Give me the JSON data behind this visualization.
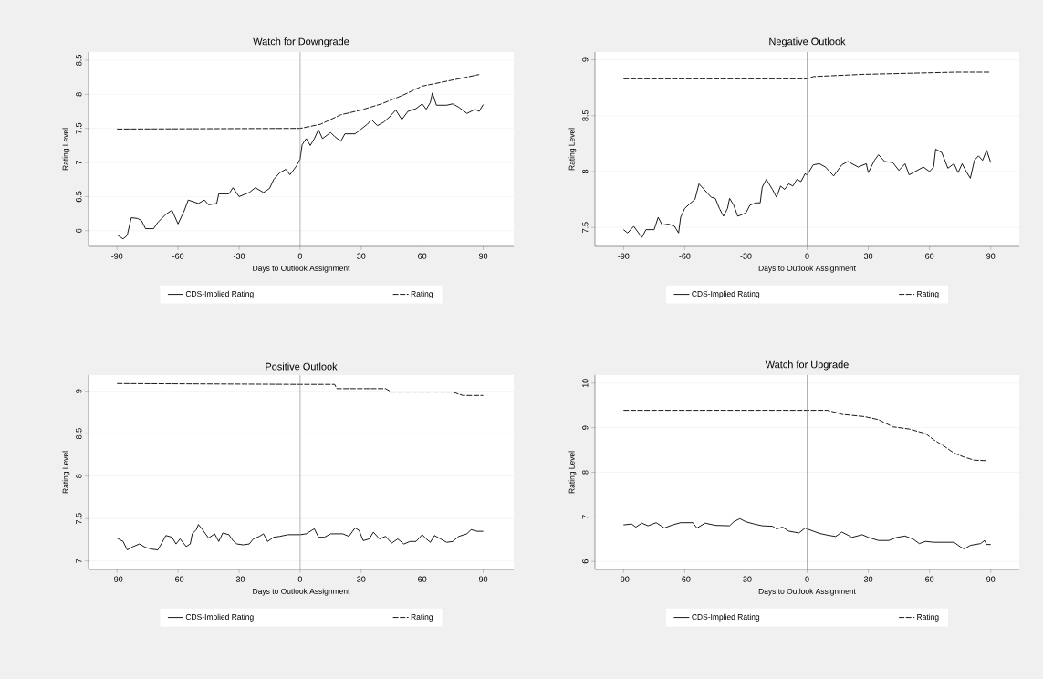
{
  "chart_data": [
    {
      "type": "line",
      "title": "Watch for Downgrade",
      "xlabel": "Days to Outlook Assignment",
      "ylabel": "Rating Level",
      "xlim": [
        -104,
        105
      ],
      "ylim": [
        5.77,
        8.62
      ],
      "xticks": [
        -90,
        -60,
        -30,
        0,
        30,
        60,
        90
      ],
      "yticks": [
        6,
        6.5,
        7,
        7.5,
        8,
        8.5
      ],
      "grid": "y",
      "legend": "bottom",
      "ref_lines": [
        {
          "axis": "x",
          "value": 0,
          "color": "#808080"
        }
      ],
      "series": [
        {
          "name": "CDS-Implied Rating",
          "color": "#000000",
          "line_style": "solid",
          "x": [
            -90,
            -87,
            -85,
            -83,
            -80,
            -78,
            -76,
            -72,
            -70,
            -66,
            -63,
            -60,
            -57,
            -55,
            -50,
            -47,
            -45,
            -41,
            -40,
            -35,
            -33,
            -30,
            -25,
            -22,
            -18,
            -15,
            -13,
            -10,
            -7,
            -5,
            -2,
            0,
            1,
            3,
            5,
            7,
            9,
            11,
            15,
            17,
            20,
            22,
            27,
            30,
            33,
            35,
            38,
            41,
            44,
            47,
            50,
            53,
            57,
            60,
            62,
            64,
            65,
            67,
            72,
            75,
            78,
            82,
            86,
            88,
            90
          ],
          "values": [
            5.94,
            5.88,
            5.93,
            6.19,
            6.18,
            6.15,
            6.03,
            6.03,
            6.12,
            6.24,
            6.3,
            6.1,
            6.29,
            6.45,
            6.4,
            6.45,
            6.38,
            6.4,
            6.54,
            6.54,
            6.63,
            6.5,
            6.56,
            6.63,
            6.56,
            6.62,
            6.75,
            6.85,
            6.9,
            6.82,
            6.94,
            7.05,
            7.26,
            7.35,
            7.25,
            7.35,
            7.48,
            7.35,
            7.44,
            7.38,
            7.31,
            7.42,
            7.42,
            7.49,
            7.56,
            7.63,
            7.54,
            7.59,
            7.67,
            7.77,
            7.63,
            7.75,
            7.79,
            7.86,
            7.78,
            7.88,
            8.02,
            7.84,
            7.84,
            7.86,
            7.81,
            7.72,
            7.78,
            7.75,
            7.85
          ]
        },
        {
          "name": "Rating",
          "color": "#000000",
          "line_style": "dashed",
          "x": [
            -90,
            0,
            10,
            20,
            30,
            40,
            50,
            60,
            70,
            80,
            88
          ],
          "values": [
            7.49,
            7.5,
            7.56,
            7.7,
            7.77,
            7.86,
            7.98,
            8.12,
            8.18,
            8.24,
            8.29
          ]
        }
      ]
    },
    {
      "type": "line",
      "title": "Negative Outlook",
      "xlabel": "Days to Outlook Assignment",
      "ylabel": "Rating Level",
      "xlim": [
        -104,
        104
      ],
      "ylim": [
        7.33,
        9.07
      ],
      "xticks": [
        -90,
        -60,
        -30,
        0,
        30,
        60,
        90
      ],
      "yticks": [
        7.5,
        8,
        8.5,
        9
      ],
      "grid": "y",
      "legend": "bottom",
      "ref_lines": [
        {
          "axis": "x",
          "value": 0,
          "color": "#808080"
        }
      ],
      "series": [
        {
          "name": "CDS-Implied Rating",
          "color": "#000000",
          "line_style": "solid",
          "x": [
            -90,
            -88,
            -85,
            -83,
            -81,
            -79,
            -75,
            -73,
            -71,
            -68,
            -65,
            -63,
            -62,
            -60,
            -57,
            -55,
            -53,
            -50,
            -47,
            -45,
            -43,
            -41,
            -39,
            -38,
            -36,
            -34,
            -30,
            -28,
            -25,
            -23,
            -22,
            -20,
            -17,
            -15,
            -13,
            -11,
            -9,
            -7,
            -5,
            -3,
            -1,
            0,
            3,
            6,
            9,
            13,
            17,
            20,
            25,
            29,
            30,
            33,
            35,
            38,
            42,
            45,
            48,
            50,
            53,
            57,
            60,
            62,
            63,
            66,
            69,
            72,
            74,
            76,
            78,
            80,
            82,
            84,
            86,
            88,
            90
          ],
          "values": [
            7.48,
            7.45,
            7.51,
            7.46,
            7.41,
            7.48,
            7.48,
            7.59,
            7.52,
            7.53,
            7.51,
            7.45,
            7.59,
            7.67,
            7.72,
            7.75,
            7.89,
            7.83,
            7.77,
            7.76,
            7.67,
            7.6,
            7.67,
            7.76,
            7.7,
            7.6,
            7.63,
            7.7,
            7.72,
            7.72,
            7.86,
            7.93,
            7.84,
            7.77,
            7.87,
            7.84,
            7.89,
            7.87,
            7.93,
            7.91,
            7.98,
            7.97,
            8.06,
            8.07,
            8.04,
            7.96,
            8.06,
            8.09,
            8.04,
            8.07,
            7.99,
            8.1,
            8.15,
            8.09,
            8.08,
            8.01,
            8.07,
            7.97,
            8.0,
            8.04,
            8.0,
            8.04,
            8.2,
            8.17,
            8.03,
            8.07,
            7.99,
            8.07,
            8.0,
            7.94,
            8.1,
            8.14,
            8.1,
            8.19,
            8.08
          ]
        },
        {
          "name": "Rating",
          "color": "#000000",
          "line_style": "dashed",
          "x": [
            -90,
            0,
            3,
            27,
            73,
            90
          ],
          "values": [
            8.83,
            8.83,
            8.85,
            8.87,
            8.89,
            8.89
          ]
        }
      ]
    },
    {
      "type": "line",
      "title": "Positive Outlook",
      "xlabel": "Days to Outlook Assignment",
      "ylabel": "Rating Level",
      "xlim": [
        -104,
        105
      ],
      "ylim": [
        6.9,
        9.19
      ],
      "xticks": [
        -90,
        -60,
        -30,
        0,
        30,
        60,
        90
      ],
      "yticks": [
        7,
        7.5,
        8,
        8.5,
        9
      ],
      "grid": "y",
      "legend": "bottom",
      "ref_lines": [
        {
          "axis": "x",
          "value": 0,
          "color": "#808080"
        }
      ],
      "series": [
        {
          "name": "CDS-Implied Rating",
          "color": "#000000",
          "line_style": "solid",
          "x": [
            -90,
            -87,
            -85,
            -82,
            -79,
            -76,
            -73,
            -70,
            -68,
            -66,
            -63,
            -61,
            -59,
            -56,
            -54,
            -53,
            -51,
            -50,
            -48,
            -45,
            -42,
            -40,
            -38,
            -35,
            -33,
            -31,
            -28,
            -25,
            -23,
            -20,
            -18,
            -16,
            -13,
            -10,
            -6,
            0,
            3,
            7,
            9,
            12,
            15,
            21,
            24,
            27,
            29,
            31,
            34,
            36,
            39,
            42,
            45,
            48,
            51,
            54,
            57,
            60,
            62,
            64,
            66,
            69,
            72,
            75,
            78,
            82,
            84,
            87,
            90
          ],
          "values": [
            7.27,
            7.23,
            7.13,
            7.17,
            7.2,
            7.16,
            7.14,
            7.13,
            7.21,
            7.3,
            7.28,
            7.2,
            7.26,
            7.17,
            7.2,
            7.32,
            7.37,
            7.43,
            7.37,
            7.27,
            7.32,
            7.23,
            7.33,
            7.31,
            7.24,
            7.2,
            7.19,
            7.2,
            7.26,
            7.29,
            7.32,
            7.23,
            7.28,
            7.29,
            7.31,
            7.31,
            7.32,
            7.38,
            7.28,
            7.28,
            7.32,
            7.32,
            7.29,
            7.39,
            7.36,
            7.24,
            7.26,
            7.34,
            7.26,
            7.29,
            7.21,
            7.26,
            7.2,
            7.23,
            7.23,
            7.31,
            7.26,
            7.22,
            7.3,
            7.26,
            7.22,
            7.23,
            7.29,
            7.32,
            7.37,
            7.35,
            7.35
          ]
        },
        {
          "name": "Rating",
          "color": "#000000",
          "line_style": "dashed",
          "x": [
            -90,
            0,
            17,
            18,
            42,
            45,
            75,
            80,
            90
          ],
          "values": [
            9.09,
            9.08,
            9.08,
            9.03,
            9.03,
            8.99,
            8.99,
            8.95,
            8.95
          ]
        }
      ]
    },
    {
      "type": "line",
      "title": "Watch for Upgrade",
      "xlabel": "Days to Outlook Assignment",
      "ylabel": "Rating Level",
      "xlim": [
        -104,
        104
      ],
      "ylim": [
        5.82,
        10.18
      ],
      "xticks": [
        -90,
        -60,
        -30,
        0,
        30,
        60,
        90
      ],
      "yticks": [
        6,
        7,
        8,
        9,
        10
      ],
      "grid": "y",
      "legend": "bottom",
      "ref_lines": [
        {
          "axis": "x",
          "value": 0,
          "color": "#808080"
        }
      ],
      "series": [
        {
          "name": "CDS-Implied Rating",
          "color": "#000000",
          "line_style": "solid",
          "x": [
            -90,
            -86,
            -84,
            -81,
            -78,
            -74,
            -70,
            -66,
            -62,
            -56,
            -54,
            -50,
            -45,
            -38,
            -36,
            -33,
            -30,
            -26,
            -22,
            -17,
            -15,
            -12,
            -9,
            -4,
            -1,
            0,
            3,
            6,
            10,
            14,
            17,
            20,
            22,
            27,
            30,
            35,
            40,
            44,
            48,
            52,
            55,
            58,
            62,
            72,
            75,
            77,
            80,
            85,
            87,
            88,
            90
          ],
          "values": [
            6.82,
            6.84,
            6.77,
            6.86,
            6.8,
            6.87,
            6.75,
            6.82,
            6.87,
            6.87,
            6.75,
            6.86,
            6.81,
            6.8,
            6.89,
            6.96,
            6.89,
            6.84,
            6.8,
            6.79,
            6.73,
            6.77,
            6.68,
            6.64,
            6.75,
            6.73,
            6.68,
            6.63,
            6.59,
            6.56,
            6.66,
            6.59,
            6.54,
            6.6,
            6.54,
            6.47,
            6.47,
            6.54,
            6.57,
            6.5,
            6.4,
            6.45,
            6.43,
            6.43,
            6.33,
            6.28,
            6.36,
            6.4,
            6.47,
            6.38,
            6.38
          ]
        },
        {
          "name": "Rating",
          "color": "#000000",
          "line_style": "dashed",
          "x": [
            -90,
            10,
            15,
            17,
            28,
            35,
            39,
            42,
            50,
            58,
            62,
            67,
            72,
            77,
            82,
            88
          ],
          "values": [
            9.39,
            9.39,
            9.33,
            9.3,
            9.25,
            9.18,
            9.09,
            9.02,
            8.97,
            8.87,
            8.73,
            8.59,
            8.43,
            8.34,
            8.27,
            8.26
          ]
        }
      ]
    }
  ]
}
